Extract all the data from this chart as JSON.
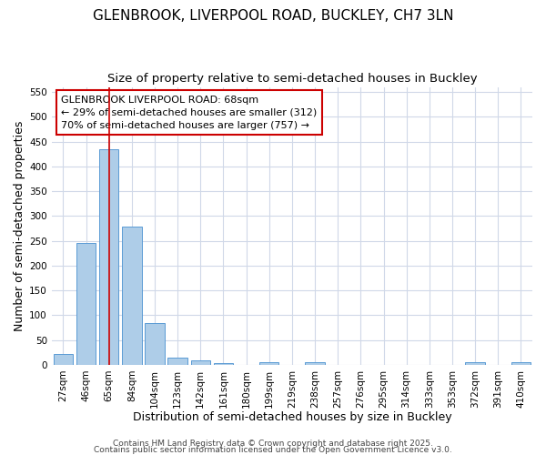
{
  "title_line1": "GLENBROOK, LIVERPOOL ROAD, BUCKLEY, CH7 3LN",
  "title_line2": "Size of property relative to semi-detached houses in Buckley",
  "xlabel": "Distribution of semi-detached houses by size in Buckley",
  "ylabel": "Number of semi-detached properties",
  "categories": [
    "27sqm",
    "46sqm",
    "65sqm",
    "84sqm",
    "104sqm",
    "123sqm",
    "142sqm",
    "161sqm",
    "180sqm",
    "199sqm",
    "219sqm",
    "238sqm",
    "257sqm",
    "276sqm",
    "295sqm",
    "314sqm",
    "333sqm",
    "353sqm",
    "372sqm",
    "391sqm",
    "410sqm"
  ],
  "values": [
    22,
    245,
    435,
    278,
    85,
    14,
    9,
    4,
    0,
    5,
    0,
    5,
    0,
    0,
    0,
    0,
    0,
    0,
    5,
    0,
    5
  ],
  "bar_color": "#aecde8",
  "bar_edge_color": "#5b9bd5",
  "vline_x_index": 2,
  "vline_color": "#cc0000",
  "annotation_text": "GLENBROOK LIVERPOOL ROAD: 68sqm\n← 29% of semi-detached houses are smaller (312)\n70% of semi-detached houses are larger (757) →",
  "annotation_box_color": "#ffffff",
  "annotation_box_edge_color": "#cc0000",
  "ylim": [
    0,
    560
  ],
  "yticks": [
    0,
    50,
    100,
    150,
    200,
    250,
    300,
    350,
    400,
    450,
    500,
    550
  ],
  "plot_bg_color": "#ffffff",
  "fig_bg_color": "#ffffff",
  "grid_color": "#d0d8e8",
  "footer_line1": "Contains HM Land Registry data © Crown copyright and database right 2025.",
  "footer_line2": "Contains public sector information licensed under the Open Government Licence v3.0.",
  "title_fontsize": 11,
  "subtitle_fontsize": 9.5,
  "axis_label_fontsize": 9,
  "tick_fontsize": 7.5,
  "annot_fontsize": 8,
  "footer_fontsize": 6.5
}
